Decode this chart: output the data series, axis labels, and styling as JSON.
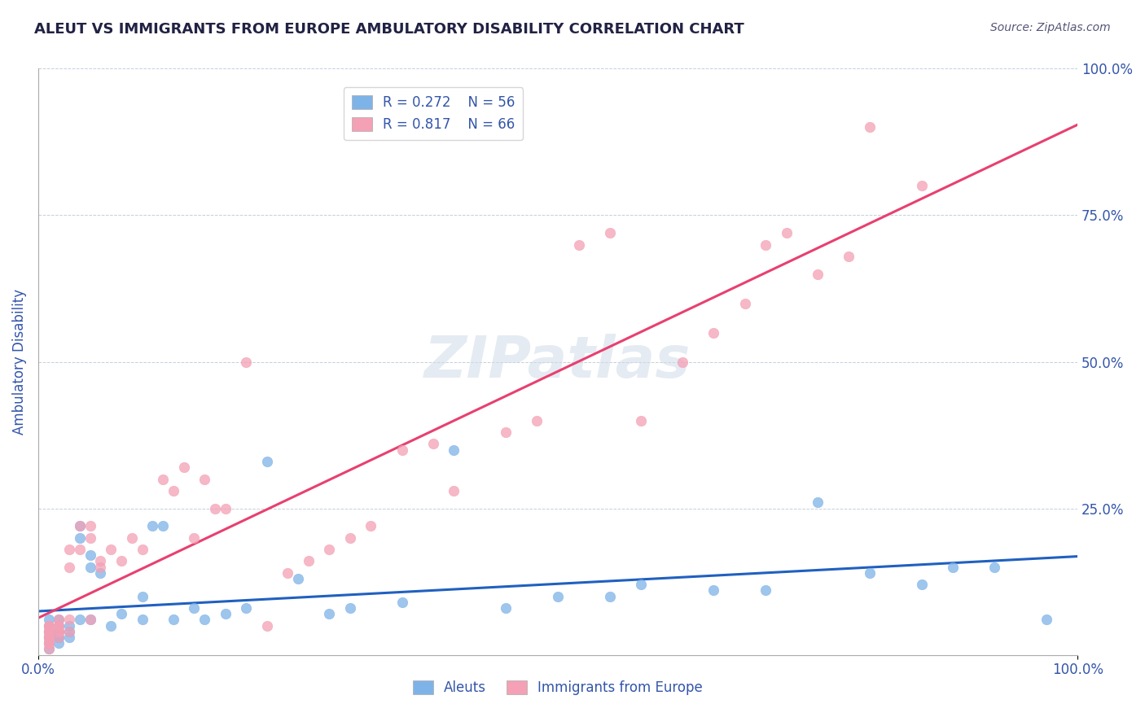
{
  "title": "ALEUT VS IMMIGRANTS FROM EUROPE AMBULATORY DISABILITY CORRELATION CHART",
  "source": "Source: ZipAtlas.com",
  "ylabel": "Ambulatory Disability",
  "xlim": [
    0,
    1.0
  ],
  "ylim": [
    0,
    1.0
  ],
  "xtick_labels": [
    "0.0%",
    "100.0%"
  ],
  "ytick_labels": [
    "25.0%",
    "50.0%",
    "75.0%",
    "100.0%"
  ],
  "ytick_positions": [
    0.25,
    0.5,
    0.75,
    1.0
  ],
  "legend_r_aleuts": "R = 0.272",
  "legend_n_aleuts": "N = 56",
  "legend_r_immigrants": "R = 0.817",
  "legend_n_immigrants": "N = 66",
  "aleut_color": "#7eb3e8",
  "immigrant_color": "#f4a0b5",
  "aleut_line_color": "#2060c0",
  "immigrant_line_color": "#e84070",
  "watermark": "ZIPatlas",
  "background_color": "#ffffff",
  "title_color": "#222244",
  "axis_label_color": "#3355aa",
  "tick_label_color": "#3355aa",
  "aleuts_x": [
    0.01,
    0.01,
    0.01,
    0.01,
    0.01,
    0.01,
    0.01,
    0.01,
    0.01,
    0.01,
    0.02,
    0.02,
    0.02,
    0.02,
    0.02,
    0.02,
    0.02,
    0.03,
    0.03,
    0.03,
    0.04,
    0.04,
    0.04,
    0.05,
    0.05,
    0.05,
    0.06,
    0.07,
    0.08,
    0.1,
    0.1,
    0.11,
    0.12,
    0.13,
    0.15,
    0.16,
    0.18,
    0.2,
    0.22,
    0.25,
    0.28,
    0.3,
    0.35,
    0.4,
    0.45,
    0.5,
    0.55,
    0.58,
    0.65,
    0.7,
    0.75,
    0.8,
    0.85,
    0.88,
    0.92,
    0.97
  ],
  "aleuts_y": [
    0.02,
    0.03,
    0.04,
    0.03,
    0.05,
    0.06,
    0.03,
    0.04,
    0.02,
    0.01,
    0.04,
    0.06,
    0.05,
    0.03,
    0.04,
    0.03,
    0.02,
    0.05,
    0.04,
    0.03,
    0.2,
    0.22,
    0.06,
    0.15,
    0.17,
    0.06,
    0.14,
    0.05,
    0.07,
    0.1,
    0.06,
    0.22,
    0.22,
    0.06,
    0.08,
    0.06,
    0.07,
    0.08,
    0.33,
    0.13,
    0.07,
    0.08,
    0.09,
    0.35,
    0.08,
    0.1,
    0.1,
    0.12,
    0.11,
    0.11,
    0.26,
    0.14,
    0.12,
    0.15,
    0.15,
    0.06
  ],
  "immigrants_x": [
    0.01,
    0.01,
    0.01,
    0.01,
    0.01,
    0.01,
    0.01,
    0.01,
    0.01,
    0.01,
    0.01,
    0.01,
    0.01,
    0.01,
    0.02,
    0.02,
    0.02,
    0.02,
    0.02,
    0.02,
    0.03,
    0.03,
    0.03,
    0.03,
    0.04,
    0.04,
    0.05,
    0.05,
    0.05,
    0.06,
    0.06,
    0.07,
    0.08,
    0.09,
    0.1,
    0.12,
    0.13,
    0.14,
    0.15,
    0.16,
    0.17,
    0.18,
    0.2,
    0.22,
    0.24,
    0.26,
    0.28,
    0.3,
    0.32,
    0.35,
    0.38,
    0.4,
    0.45,
    0.48,
    0.52,
    0.55,
    0.58,
    0.62,
    0.65,
    0.68,
    0.7,
    0.72,
    0.75,
    0.78,
    0.8,
    0.85
  ],
  "immigrants_y": [
    0.02,
    0.03,
    0.04,
    0.05,
    0.03,
    0.04,
    0.05,
    0.02,
    0.01,
    0.03,
    0.02,
    0.04,
    0.03,
    0.05,
    0.04,
    0.06,
    0.05,
    0.04,
    0.03,
    0.05,
    0.15,
    0.18,
    0.06,
    0.04,
    0.18,
    0.22,
    0.2,
    0.22,
    0.06,
    0.15,
    0.16,
    0.18,
    0.16,
    0.2,
    0.18,
    0.3,
    0.28,
    0.32,
    0.2,
    0.3,
    0.25,
    0.25,
    0.5,
    0.05,
    0.14,
    0.16,
    0.18,
    0.2,
    0.22,
    0.35,
    0.36,
    0.28,
    0.38,
    0.4,
    0.7,
    0.72,
    0.4,
    0.5,
    0.55,
    0.6,
    0.7,
    0.72,
    0.65,
    0.68,
    0.9,
    0.8
  ]
}
